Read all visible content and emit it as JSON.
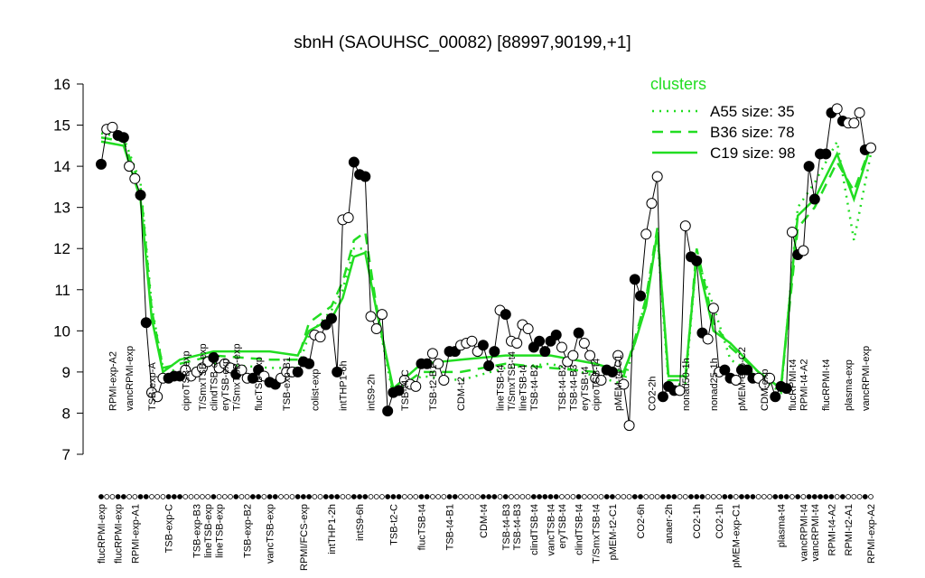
{
  "chart_data": {
    "type": "line",
    "title": "sbnH (SAOUHSC_00082) [88997,90199,+1]",
    "ylim": [
      7,
      16
    ],
    "yticks": [
      7,
      8,
      9,
      10,
      11,
      12,
      13,
      14,
      15,
      16
    ],
    "legend_title": "clusters",
    "legend_color": "#22dd22",
    "labels_top": [
      null,
      null,
      "RPMI-exp-A2",
      null,
      null,
      "vancRPMI-exp",
      null,
      null,
      null,
      "TSB-exp-A",
      null,
      null,
      null,
      null,
      null,
      "ciproTSB-exp",
      null,
      null,
      "T/SmxTSB-exp",
      null,
      "clindTSB-exp",
      null,
      "eryTSB-exp",
      null,
      "T/SmxTSB-exp",
      null,
      null,
      null,
      "flucTSB-exp",
      null,
      null,
      null,
      null,
      "TSB-exp-B1",
      null,
      null,
      null,
      null,
      "colist-exp",
      null,
      null,
      null,
      null,
      "intTHP1-6h",
      null,
      null,
      null,
      null,
      "intS9-2h",
      null,
      null,
      null,
      null,
      null,
      "TSB-t4-C",
      null,
      null,
      null,
      null,
      "TSB-t2-B1",
      null,
      null,
      null,
      null,
      "CDM-t2",
      null,
      null,
      null,
      null,
      null,
      null,
      "lineTSB-t4",
      null,
      "T/SmxTSB-t4",
      null,
      "lineTSB-t4",
      null,
      "TSB-t4-B2",
      null,
      null,
      null,
      null,
      "TSB-t4-B2",
      null,
      "TSB-t4-B3",
      null,
      "eryTSB-t4",
      null,
      "ciproTSB-t4",
      null,
      null,
      null,
      "pMEM-t4-C1",
      null,
      null,
      null,
      null,
      null,
      "CO2-2h",
      null,
      null,
      null,
      null,
      null,
      "nonad50-1h",
      null,
      null,
      null,
      null,
      "nonad25-1h",
      null,
      null,
      null,
      null,
      "pMEM-exp-C2",
      null,
      null,
      null,
      "CDM-exp",
      null,
      null,
      null,
      null,
      "flucRPMI-t4",
      null,
      "RPMI-t4-A2",
      null,
      null,
      null,
      "flucRPMI-t4",
      null,
      null,
      null,
      "plasma-exp",
      null,
      null,
      "vancRPMI-exp",
      null
    ],
    "labels_bottom": [
      "flucRPMI-exp",
      null,
      null,
      "flucRPMI-exp",
      null,
      null,
      "RPMI-exp-A1",
      null,
      null,
      null,
      null,
      null,
      "TSB-exp-C",
      null,
      null,
      null,
      null,
      "TSB-exp-B3",
      null,
      "lineTSB-exp",
      null,
      "lineTSB-exp",
      null,
      null,
      null,
      null,
      "TSB-exp-B2",
      null,
      null,
      null,
      "vancTSB-exp",
      null,
      null,
      null,
      null,
      null,
      "RPMI/FCS-exp",
      null,
      null,
      null,
      null,
      "intTHP1-2h",
      null,
      null,
      null,
      null,
      "intS9-6h",
      null,
      null,
      null,
      null,
      null,
      "TSB-t2-C",
      null,
      null,
      null,
      null,
      "flucTSB-t4",
      null,
      null,
      null,
      null,
      "TSB-t4-B1",
      null,
      null,
      null,
      null,
      null,
      "CDM-t4",
      null,
      null,
      null,
      "TSB-t4-B3",
      null,
      "TSB-t4-B3",
      null,
      null,
      "clindTSB-t4",
      null,
      null,
      "vancTSB-t4",
      null,
      "eryTSB-t4",
      null,
      null,
      "clindTSB-t4",
      null,
      null,
      "T/SmxTSB-t4",
      null,
      null,
      "pMEM-t2-C1",
      null,
      null,
      null,
      null,
      "CO2-6h",
      null,
      null,
      null,
      null,
      "anaer-2h",
      null,
      null,
      null,
      null,
      "CO2-1h",
      null,
      null,
      null,
      "CO2-1h",
      null,
      null,
      "pMEM-exp-C1",
      null,
      null,
      null,
      null,
      null,
      null,
      null,
      "plasma-t4",
      null,
      null,
      null,
      "vancRPMI-t4",
      null,
      "vancRPMI-t4",
      null,
      null,
      "RPMI-t4-A2",
      null,
      null,
      "RPMI-t2-A1",
      null,
      null,
      null,
      "RPMI-exp-A2"
    ],
    "series": [
      {
        "color": "#000000",
        "values": [
          14.05,
          14.9,
          14.95,
          14.75,
          14.7,
          14.0,
          13.7,
          13.3,
          10.2,
          8.5,
          8.4,
          8.85,
          8.85,
          8.9,
          8.9,
          9.05,
          8.9,
          9.0,
          9.1,
          9.25,
          9.35,
          9.1,
          9.2,
          9.1,
          8.95,
          9.05,
          8.85,
          8.85,
          9.05,
          8.9,
          8.75,
          8.7,
          8.85,
          9.0,
          9.0,
          9.0,
          9.25,
          9.2,
          9.9,
          9.85,
          10.15,
          10.3,
          9.0,
          12.7,
          12.75,
          14.1,
          13.8,
          13.75,
          10.35,
          10.05,
          10.4,
          8.05,
          8.5,
          8.55,
          8.8,
          8.7,
          8.65,
          9.2,
          9.2,
          9.45,
          9.2,
          8.8,
          9.5,
          9.5,
          9.65,
          9.7,
          9.75,
          9.5,
          9.65,
          9.15,
          9.5,
          10.5,
          10.4,
          9.75,
          9.7,
          10.15,
          10.05,
          9.6,
          9.75,
          9.5,
          9.75,
          9.9,
          9.6,
          9.25,
          9.4,
          9.95,
          9.7,
          9.4,
          8.85,
          8.8,
          9.05,
          9.0,
          9.4,
          8.7,
          7.7,
          11.25,
          10.85,
          12.35,
          13.1,
          13.75,
          8.4,
          8.65,
          8.55,
          8.55,
          12.55,
          11.8,
          11.7,
          9.95,
          9.8,
          10.55,
          9.0,
          9.05,
          8.85,
          8.8,
          9.05,
          9.05,
          8.85,
          8.85,
          8.7,
          8.85,
          8.4,
          8.65,
          8.6,
          12.4,
          11.85,
          11.95,
          14.0,
          13.2,
          14.3,
          14.3,
          15.3,
          15.4,
          15.1,
          15.05,
          15.05,
          15.3,
          14.4,
          14.45
        ],
        "point_colors": [
          "black",
          "white",
          "white",
          "black",
          "black",
          "white",
          "white",
          "black",
          "black",
          "white",
          "white",
          "white",
          "black",
          "black",
          "black",
          "white",
          "white",
          "white",
          "white",
          "white",
          "black",
          "white",
          "white",
          "white",
          "black",
          "white",
          "white",
          "black",
          "black",
          "white",
          "black",
          "black",
          "white",
          "white",
          "white",
          "black",
          "black",
          "black",
          "white",
          "white",
          "black",
          "black",
          "black",
          "white",
          "white",
          "black",
          "black",
          "black",
          "white",
          "white",
          "white",
          "black",
          "black",
          "black",
          "white",
          "white",
          "white",
          "black",
          "black",
          "white",
          "white",
          "white",
          "black",
          "black",
          "white",
          "white",
          "white",
          "white",
          "black",
          "black",
          "black",
          "white",
          "black",
          "white",
          "white",
          "white",
          "white",
          "black",
          "black",
          "black",
          "black",
          "black",
          "white",
          "white",
          "white",
          "black",
          "white",
          "white",
          "white",
          "white",
          "black",
          "black",
          "white",
          "white",
          "white",
          "black",
          "black",
          "white",
          "white",
          "white",
          "black",
          "black",
          "black",
          "white",
          "white",
          "black",
          "black",
          "black",
          "white",
          "white",
          "white",
          "black",
          "black",
          "white",
          "black",
          "black",
          "black",
          "white",
          "white",
          "white",
          "black",
          "black",
          "black",
          "white",
          "black",
          "white",
          "black",
          "black",
          "black",
          "black",
          "black",
          "white",
          "black",
          "white",
          "white",
          "white",
          "black",
          "white"
        ]
      },
      {
        "name": "A55 size: 35",
        "color": "#22dd22",
        "style": "dotted",
        "x": [
          0,
          4,
          7,
          9,
          11,
          14,
          20,
          30,
          35,
          37,
          41,
          43,
          45,
          47,
          49,
          52,
          57,
          64,
          72,
          80,
          88,
          93,
          95,
          97,
          99,
          101,
          104,
          106,
          109,
          112,
          117,
          121,
          124,
          127,
          131,
          134,
          137
        ],
        "values": [
          14.8,
          14.7,
          13.6,
          10.6,
          9.1,
          9.0,
          9.2,
          9.1,
          9.1,
          9.9,
          10.5,
          11.0,
          12.0,
          12.0,
          10.5,
          8.4,
          8.9,
          8.8,
          9.1,
          9.2,
          8.9,
          8.7,
          9.7,
          10.8,
          12.3,
          8.7,
          8.7,
          11.8,
          10.6,
          9.3,
          8.9,
          8.5,
          13.0,
          13.6,
          14.6,
          12.2,
          14.3
        ]
      },
      {
        "name": "B36 size: 78",
        "color": "#22dd22",
        "style": "dashed",
        "x": [
          0,
          4,
          7,
          9,
          11,
          14,
          20,
          30,
          35,
          37,
          41,
          43,
          45,
          47,
          49,
          52,
          57,
          64,
          72,
          80,
          88,
          93,
          95,
          97,
          99,
          101,
          104,
          106,
          109,
          112,
          117,
          121,
          124,
          127,
          131,
          134,
          137
        ],
        "values": [
          14.7,
          14.6,
          13.5,
          10.5,
          9.1,
          9.2,
          9.4,
          9.3,
          9.3,
          10.2,
          10.6,
          11.2,
          12.2,
          12.4,
          10.6,
          8.5,
          9.0,
          9.0,
          9.2,
          9.1,
          9.0,
          8.9,
          9.8,
          10.8,
          12.5,
          8.8,
          8.8,
          12.0,
          10.2,
          9.6,
          9.0,
          8.6,
          12.5,
          13.0,
          14.1,
          13.4,
          14.5
        ]
      },
      {
        "name": "C19 size: 98",
        "color": "#22dd22",
        "style": "solid",
        "x": [
          0,
          4,
          7,
          9,
          11,
          14,
          20,
          30,
          35,
          37,
          41,
          43,
          45,
          47,
          49,
          52,
          57,
          64,
          72,
          80,
          88,
          93,
          95,
          97,
          99,
          101,
          104,
          106,
          109,
          112,
          117,
          121,
          124,
          127,
          131,
          134,
          137
        ],
        "values": [
          14.6,
          14.5,
          13.2,
          10.3,
          9.0,
          9.3,
          9.5,
          9.5,
          9.4,
          10.0,
          10.3,
          10.8,
          11.8,
          11.9,
          10.5,
          8.6,
          9.2,
          9.3,
          9.4,
          9.4,
          9.2,
          9.0,
          9.7,
          10.6,
          12.4,
          8.9,
          8.9,
          11.8,
          10.0,
          9.7,
          9.0,
          8.6,
          12.8,
          13.2,
          14.3,
          13.2,
          14.5
        ]
      }
    ]
  }
}
